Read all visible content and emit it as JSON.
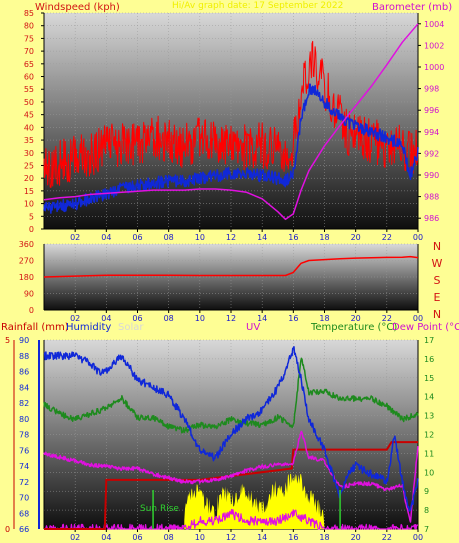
{
  "header": {
    "left_label": "Windspeed (kph)",
    "center_label": "Hi/Av graph date: 17 September 2022",
    "right_label": "Barometer (mb)"
  },
  "colors": {
    "background": "#fefe94",
    "plot_top": "#d6d6d6",
    "plot_bottom": "#101010",
    "red": "#ff0000",
    "blue": "#1028d8",
    "magenta": "#e010e0",
    "green": "#1e8a1e",
    "yellow": "#ffff00",
    "dark_red": "#c80000",
    "label_red": "#d21414"
  },
  "x_ticks": [
    "02",
    "04",
    "06",
    "08",
    "10",
    "12",
    "14",
    "16",
    "18",
    "20",
    "22",
    "00"
  ],
  "wind_panel": {
    "y_ticks": [
      "0",
      "5",
      "10",
      "15",
      "20",
      "25",
      "30",
      "35",
      "40",
      "45",
      "50",
      "55",
      "60",
      "65",
      "70",
      "75",
      "80",
      "85"
    ],
    "baro_ticks": [
      "986",
      "988",
      "990",
      "992",
      "994",
      "996",
      "998",
      "1000",
      "1002",
      "1004"
    ]
  },
  "direction_panel": {
    "y_ticks": [
      "0",
      "90",
      "180",
      "270",
      "360"
    ],
    "compass": [
      "N",
      "W",
      "S",
      "E",
      "N"
    ]
  },
  "bottom_panel": {
    "rain_label": "Rainfall (mm)",
    "humidity_label": "Humidity",
    "solar_label": "Solar",
    "uv_label": "UV",
    "temp_label": "Temperature (°C)",
    "dew_label": "Dew Point (°C)",
    "left_outer_ticks": [
      "5",
      "0"
    ],
    "humidity_ticks": [
      "66",
      "68",
      "70",
      "72",
      "74",
      "76",
      "78",
      "80",
      "82",
      "84",
      "86",
      "88",
      "90"
    ],
    "temp_ticks": [
      "7",
      "8",
      "9",
      "10",
      "11",
      "12",
      "13",
      "14",
      "15",
      "16",
      "17"
    ],
    "sunrise_label": "Sun Rise"
  },
  "chart_data": [
    {
      "type": "line",
      "title": "Hi/Av graph date: 17 September 2022",
      "x_range_hours": [
        0,
        24
      ],
      "ylabel": "Windspeed (kph)",
      "ylim": [
        0,
        85
      ],
      "y2label": "Barometer (mb)",
      "y2lim": [
        985,
        1005
      ],
      "series": [
        {
          "name": "Wind gust",
          "color": "#ff0000",
          "x": [
            0,
            1,
            2,
            3,
            4,
            5,
            6,
            7,
            8,
            9,
            10,
            11,
            12,
            13,
            14,
            15,
            15.5,
            16,
            16.5,
            17,
            17.5,
            18,
            18.5,
            19,
            19.5,
            20,
            21,
            22,
            23,
            23.5,
            24
          ],
          "y": [
            24,
            26,
            28,
            30,
            32,
            34,
            33,
            36,
            34,
            33,
            35,
            34,
            33,
            32,
            33,
            31,
            30,
            34,
            52,
            66,
            64,
            56,
            50,
            44,
            38,
            37,
            35,
            33,
            32,
            29,
            31
          ]
        },
        {
          "name": "Wind average",
          "color": "#1028d8",
          "x": [
            0,
            1,
            2,
            3,
            4,
            5,
            6,
            7,
            8,
            9,
            10,
            11,
            12,
            13,
            14,
            15,
            15.5,
            16,
            16.5,
            17,
            17.5,
            18,
            18.5,
            19,
            19.5,
            20,
            21,
            22,
            23,
            23.5,
            24
          ],
          "y": [
            8,
            9,
            10,
            12,
            14,
            16,
            17,
            18,
            19,
            19,
            20,
            21,
            22,
            22,
            21,
            20,
            19,
            22,
            44,
            55,
            54,
            50,
            47,
            45,
            42,
            41,
            38,
            36,
            33,
            21,
            30
          ]
        },
        {
          "name": "Barometer",
          "color": "#e010e0",
          "axis": "y2",
          "x": [
            0,
            1,
            2,
            3,
            4,
            5,
            6,
            7,
            8,
            9,
            10,
            11,
            12,
            13,
            14,
            15,
            15.5,
            16,
            16.5,
            17,
            18,
            19,
            20,
            21,
            22,
            23,
            24
          ],
          "y": [
            987.7,
            987.9,
            988.0,
            988.2,
            988.3,
            988.4,
            988.5,
            988.6,
            988.6,
            988.6,
            988.7,
            988.7,
            988.6,
            988.4,
            987.8,
            986.6,
            985.9,
            986.4,
            988.6,
            990.4,
            992.7,
            994.6,
            996.4,
            998.2,
            1000.2,
            1002.3,
            1004.0
          ]
        }
      ]
    },
    {
      "type": "line",
      "x_range_hours": [
        0,
        24
      ],
      "ylim": [
        0,
        360
      ],
      "series": [
        {
          "name": "Wind direction",
          "color": "#ff0000",
          "x": [
            0,
            2,
            4,
            6,
            8,
            10,
            12,
            14,
            15.5,
            16,
            16.5,
            17,
            18,
            19,
            20,
            21,
            22,
            23,
            23.5,
            24
          ],
          "y": [
            180,
            185,
            190,
            190,
            190,
            188,
            188,
            188,
            188,
            205,
            255,
            270,
            275,
            280,
            283,
            285,
            287,
            288,
            291,
            286
          ]
        }
      ]
    },
    {
      "type": "line",
      "x_range_hours": [
        0,
        24
      ],
      "ylabel": "Humidity",
      "ylim": [
        66,
        90
      ],
      "y2label": "Temperature (°C)",
      "y2lim": [
        7,
        17
      ],
      "series": [
        {
          "name": "Rainfall (mm)",
          "color": "#c80000",
          "axis": "left-outer",
          "ylim": [
            0,
            5
          ],
          "x": [
            0,
            3.9,
            4.0,
            10,
            15.9,
            16.0,
            22,
            22.3,
            24
          ],
          "y": [
            0,
            0,
            1.3,
            1.3,
            1.6,
            2.1,
            2.1,
            2.3,
            2.3
          ]
        },
        {
          "name": "Humidity",
          "color": "#1028d8",
          "x": [
            0,
            1,
            2,
            3,
            3.5,
            4,
            5,
            6,
            7,
            8,
            9,
            10,
            11,
            12,
            13,
            14,
            15,
            15.5,
            16,
            16.5,
            17,
            18,
            19,
            19.5,
            20,
            21,
            22,
            22.5,
            23,
            23.5,
            24
          ],
          "y": [
            88,
            88,
            88,
            87,
            86,
            86,
            88,
            85,
            84,
            83,
            80,
            76,
            75,
            78,
            80,
            81,
            84,
            86,
            89,
            85,
            80,
            76,
            70,
            73,
            74,
            73,
            72,
            78,
            72,
            68,
            72
          ]
        },
        {
          "name": "Temperature",
          "color": "#1e8a1e",
          "axis": "y2",
          "x": [
            0,
            1,
            2,
            3,
            4,
            5,
            6,
            7,
            8,
            9,
            10,
            11,
            12,
            13,
            14,
            15,
            15.5,
            16,
            16.5,
            17,
            18,
            19,
            20,
            21,
            22,
            23,
            24
          ],
          "y": [
            13.6,
            13.1,
            12.8,
            13.1,
            13.4,
            13.9,
            12.9,
            12.9,
            12.4,
            12.2,
            12.5,
            12.4,
            12.8,
            12.6,
            12.5,
            12.9,
            12.7,
            12.4,
            16.1,
            14.2,
            14.3,
            13.9,
            13.9,
            13.9,
            13.5,
            12.8,
            13.1
          ]
        },
        {
          "name": "Dew Point",
          "color": "#e010e0",
          "axis": "y2",
          "x": [
            0,
            1,
            2,
            3,
            4,
            5,
            6,
            7,
            8,
            9,
            10,
            11,
            12,
            13,
            14,
            15,
            16,
            16.5,
            17,
            18,
            19,
            20,
            21,
            22,
            23,
            23.5,
            24
          ],
          "y": [
            11.0,
            10.8,
            10.6,
            10.4,
            10.3,
            10.2,
            10.2,
            9.9,
            9.7,
            9.5,
            9.5,
            9.6,
            9.8,
            10.1,
            10.3,
            10.4,
            10.5,
            12.2,
            10.8,
            10.6,
            9.2,
            9.4,
            9.4,
            9.1,
            9.3,
            7.3,
            11.4
          ]
        },
        {
          "name": "Solar",
          "color": "#ffff00",
          "x": [
            9,
            9.5,
            10,
            10.5,
            11,
            11.5,
            12,
            12.5,
            13,
            13.5,
            14,
            14.5,
            15,
            15.5,
            16,
            16.5,
            17,
            17.5,
            18
          ],
          "y": [
            66,
            70,
            69,
            68,
            67,
            70,
            68,
            69,
            70,
            68,
            67,
            69,
            70,
            70,
            72,
            71,
            69,
            68,
            66
          ]
        },
        {
          "name": "UV",
          "color": "#e010e0",
          "x": [
            9,
            10,
            11,
            12,
            13,
            14,
            15,
            16,
            17,
            18
          ],
          "y": [
            66,
            67,
            67,
            68,
            67,
            67,
            67,
            68,
            67,
            66
          ]
        }
      ]
    }
  ]
}
